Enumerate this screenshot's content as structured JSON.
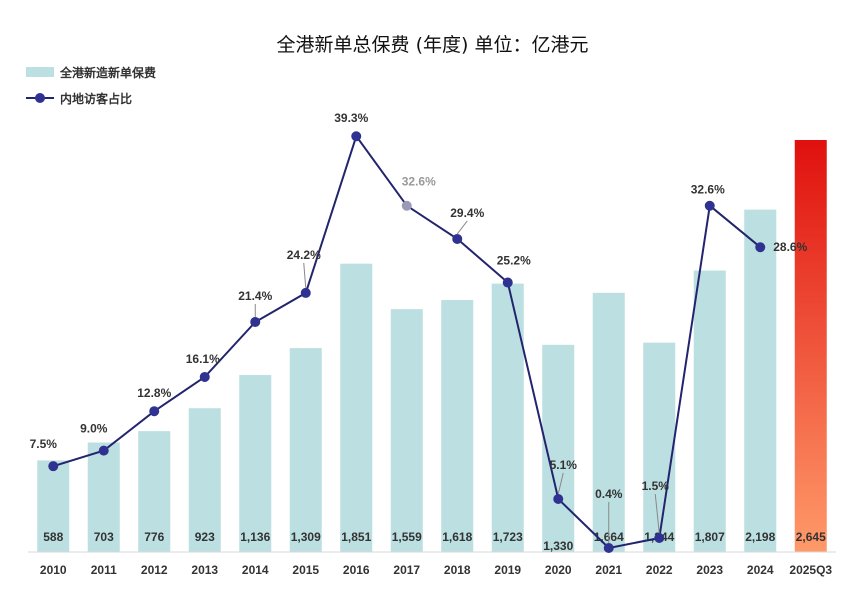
{
  "chart_data": {
    "type": "bar+line",
    "title": "全港新单总保费 (年度)   单位：亿港元",
    "categories": [
      "2010",
      "2011",
      "2012",
      "2013",
      "2014",
      "2015",
      "2016",
      "2017",
      "2018",
      "2019",
      "2020",
      "2021",
      "2022",
      "2023",
      "2024",
      "2025Q3"
    ],
    "series": [
      {
        "name": "全港新造新单保费",
        "type": "bar",
        "values": [
          588,
          703,
          776,
          923,
          1136,
          1309,
          1851,
          1559,
          1618,
          1723,
          1330,
          1664,
          1344,
          1807,
          2198,
          2645
        ],
        "labels": [
          "588",
          "703",
          "776",
          "923",
          "1,136",
          "1,309",
          "1,851",
          "1,559",
          "1,618",
          "1,723",
          "1,330",
          "1,664",
          "1,344",
          "1,807",
          "2,198",
          "2,645"
        ]
      },
      {
        "name": "内地访客占比",
        "type": "line",
        "values": [
          7.5,
          9.0,
          12.8,
          16.1,
          21.4,
          24.2,
          39.3,
          32.6,
          29.4,
          25.2,
          5.1,
          0.4,
          1.5,
          32.6,
          28.6,
          null
        ],
        "labels": [
          "7.5%",
          "9.0%",
          "12.8%",
          "16.1%",
          "21.4%",
          "24.2%",
          "39.3%",
          "32.6%",
          "29.4%",
          "25.2%",
          "5.1%",
          "0.4%",
          "1.5%",
          "32.6%",
          "28.6%",
          ""
        ]
      }
    ],
    "highlight_category": "2025Q3",
    "legend": [
      "全港新造新单保费",
      "内地访客占比"
    ],
    "colors": {
      "bar": "#bcdfe1",
      "line": "#23246e",
      "marker": "#2f3291",
      "highlight_top": "#e0100e",
      "highlight_bottom": "#ff9a6a"
    }
  }
}
